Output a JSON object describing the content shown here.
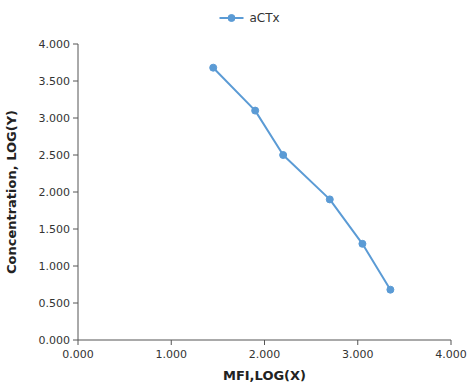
{
  "chart_data": {
    "type": "line",
    "x": [
      1.45,
      1.9,
      2.2,
      2.7,
      3.05,
      3.35
    ],
    "series": [
      {
        "name": "aCTx",
        "color": "#5B9BD5",
        "marker": "circle",
        "values": [
          3.68,
          3.1,
          2.5,
          1.9,
          1.3,
          0.68
        ]
      }
    ],
    "xlabel": "MFI,LOG(X)",
    "ylabel": "Concentration, LOG(Y)",
    "xlim": [
      0.0,
      4.0
    ],
    "ylim": [
      0.0,
      4.0
    ],
    "xticks": [
      {
        "value": 0,
        "label": "0.000"
      },
      {
        "value": 1,
        "label": "1.000"
      },
      {
        "value": 2,
        "label": "2.000"
      },
      {
        "value": 3,
        "label": "3.000"
      },
      {
        "value": 4,
        "label": "4.000"
      }
    ],
    "yticks": [
      {
        "value": 0,
        "label": "0.000"
      },
      {
        "value": 0.5,
        "label": "0.500"
      },
      {
        "value": 1,
        "label": "1.000"
      },
      {
        "value": 1.5,
        "label": "1.500"
      },
      {
        "value": 2,
        "label": "2.000"
      },
      {
        "value": 2.5,
        "label": "2.500"
      },
      {
        "value": 3,
        "label": "3.000"
      },
      {
        "value": 3.5,
        "label": "3.500"
      },
      {
        "value": 4,
        "label": "4.000"
      }
    ],
    "grid": false,
    "legend": "top"
  }
}
